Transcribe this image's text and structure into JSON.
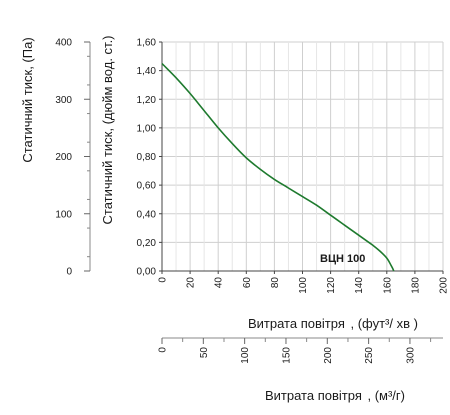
{
  "chart_data": {
    "type": "line",
    "model_label": "ВЦН 100",
    "grid": true,
    "series": [
      {
        "color": "#1e7a2e",
        "x": [
          0,
          10,
          20,
          30,
          40,
          50,
          60,
          70,
          80,
          90,
          100,
          110,
          120,
          130,
          140,
          150,
          155,
          160,
          163,
          165
        ],
        "y": [
          1.45,
          1.35,
          1.24,
          1.12,
          1.0,
          0.89,
          0.79,
          0.71,
          0.64,
          0.58,
          0.52,
          0.46,
          0.39,
          0.32,
          0.25,
          0.18,
          0.14,
          0.09,
          0.04,
          0.0
        ]
      }
    ],
    "x_axis_cfm": {
      "label_main": "Витрата повітря",
      "label_units": ", (фут³/ хв )",
      "range": [
        0,
        200
      ],
      "ticks": [
        "0",
        "20",
        "40",
        "60",
        "80",
        "100",
        "120",
        "140",
        "160",
        "180",
        "200"
      ]
    },
    "y_axis_inwg": {
      "label": "Статичний тиск, (дюйм вод. ст.)",
      "range": [
        0,
        1.6
      ],
      "ticks": [
        "0,00",
        "0,20",
        "0,40",
        "0,60",
        "0,80",
        "1,00",
        "1,20",
        "1,40",
        "1,60"
      ]
    },
    "y_axis_pa": {
      "label": "Статичний тиск, (Па)",
      "range": [
        0,
        400
      ],
      "ticks": [
        "0",
        "100",
        "200",
        "300",
        "400"
      ]
    },
    "x_axis_m3h": {
      "label_main": "Витрата повітря",
      "label_units": ", (м³/г)",
      "range": [
        0,
        340
      ],
      "ticks": [
        "0",
        "50",
        "100",
        "150",
        "200",
        "250",
        "300"
      ]
    }
  }
}
